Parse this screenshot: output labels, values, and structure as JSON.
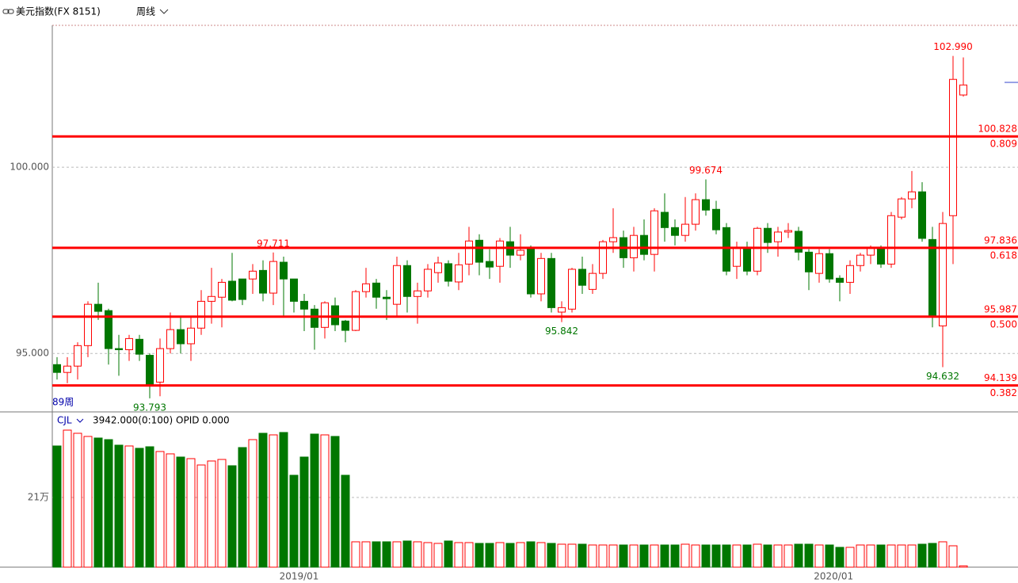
{
  "chart_data": [
    {
      "type": "candlestick",
      "title": "美元指数(FX 8151)",
      "period": "周线",
      "count_label": "89周",
      "up_color": "#ff0000",
      "down_color": "#007700",
      "level_color": "#ff0000",
      "open": [
        94.7,
        94.49,
        94.66,
        95.21,
        96.32,
        96.15,
        95.13,
        95.1,
        95.38,
        94.95,
        94.23,
        95.13,
        95.64,
        95.26,
        95.68,
        96.4,
        96.51,
        96.94,
        97.0,
        97.0,
        97.23,
        96.62,
        97.45,
        97.0,
        96.4,
        96.19,
        95.7,
        96.28,
        95.87,
        95.62,
        96.66,
        96.89,
        96.51,
        96.32,
        97.36,
        96.53,
        96.68,
        97.17,
        97.41,
        96.92,
        97.4,
        98.04,
        97.47,
        97.34,
        98.0,
        97.64,
        97.81,
        96.6,
        97.55,
        96.11,
        96.19,
        97.26,
        96.72,
        97.15,
        98.0,
        98.11,
        97.57,
        98.17,
        97.66,
        98.79,
        98.38,
        98.17,
        98.47,
        99.13,
        98.87,
        98.38,
        97.34,
        97.83,
        97.21,
        98.36,
        98.0,
        98.26,
        98.28,
        97.72,
        97.15,
        97.68,
        97.02,
        96.91,
        97.36,
        97.64,
        97.83,
        97.4,
        98.66,
        99.15,
        99.34,
        98.06,
        95.74,
        98.7,
        101.94
      ],
      "high": [
        94.9,
        94.9,
        95.3,
        96.4,
        96.9,
        96.2,
        95.5,
        95.5,
        95.5,
        95.0,
        95.4,
        96.1,
        96.0,
        96.0,
        96.7,
        97.3,
        97.0,
        97.7,
        97.0,
        97.4,
        97.5,
        97.711,
        97.6,
        97.0,
        96.6,
        96.3,
        96.4,
        96.5,
        95.9,
        96.7,
        97.3,
        97.0,
        96.7,
        97.6,
        97.5,
        96.9,
        97.4,
        97.6,
        97.5,
        97.7,
        98.4,
        98.2,
        97.8,
        98.1,
        98.4,
        98.2,
        97.9,
        97.7,
        97.7,
        96.4,
        97.3,
        97.6,
        97.4,
        98.05,
        98.9,
        98.3,
        98.4,
        98.6,
        98.9,
        99.3,
        98.6,
        99.2,
        99.3,
        99.674,
        99.1,
        98.5,
        98.0,
        98.0,
        98.4,
        98.5,
        98.4,
        98.5,
        98.4,
        97.8,
        97.8,
        97.8,
        97.1,
        97.5,
        97.7,
        97.9,
        97.9,
        98.8,
        99.2,
        99.9,
        99.6,
        98.4,
        98.8,
        102.99,
        102.95
      ],
      "low": [
        94.3,
        94.2,
        94.3,
        94.9,
        95.9,
        94.7,
        94.4,
        94.8,
        94.8,
        93.793,
        93.85,
        95.0,
        95.0,
        94.8,
        95.5,
        95.8,
        95.7,
        96.4,
        96.3,
        96.6,
        96.4,
        96.3,
        96.0,
        96.1,
        95.6,
        95.1,
        95.4,
        95.6,
        95.3,
        95.6,
        96.5,
        96.2,
        95.9,
        96.0,
        96.1,
        95.8,
        96.5,
        96.9,
        96.8,
        96.7,
        97.1,
        97.1,
        97.0,
        96.9,
        97.3,
        97.5,
        96.5,
        96.4,
        96.1,
        95.842,
        96.1,
        96.6,
        96.6,
        97.0,
        97.7,
        97.3,
        97.2,
        97.5,
        97.2,
        98.0,
        97.9,
        98.0,
        98.3,
        98.7,
        98.2,
        97.1,
        97.0,
        97.1,
        97.1,
        97.7,
        97.6,
        98.1,
        97.5,
        96.7,
        96.9,
        96.9,
        96.4,
        96.6,
        97.2,
        97.4,
        97.3,
        97.3,
        98.6,
        98.9,
        98.0,
        95.7,
        94.632,
        97.4,
        101.9
      ],
      "close": [
        94.49,
        94.66,
        95.21,
        96.32,
        96.13,
        95.13,
        95.1,
        95.4,
        94.98,
        94.15,
        95.13,
        95.64,
        95.26,
        95.68,
        96.4,
        96.53,
        96.91,
        96.43,
        96.45,
        97.21,
        96.62,
        97.47,
        97.0,
        96.4,
        96.19,
        95.7,
        96.36,
        95.77,
        95.62,
        96.66,
        96.87,
        96.51,
        96.47,
        97.36,
        96.53,
        96.68,
        97.26,
        97.43,
        96.94,
        97.38,
        98.02,
        97.45,
        97.32,
        98.02,
        97.64,
        97.77,
        96.6,
        97.55,
        96.23,
        96.23,
        97.26,
        96.83,
        97.15,
        98.0,
        98.11,
        97.57,
        98.17,
        97.66,
        98.83,
        98.38,
        98.17,
        98.47,
        99.13,
        98.85,
        98.32,
        97.21,
        97.83,
        97.21,
        98.36,
        97.98,
        98.26,
        98.3,
        97.72,
        97.19,
        97.68,
        97.0,
        96.91,
        97.36,
        97.64,
        97.83,
        97.4,
        98.7,
        99.15,
        99.34,
        98.09,
        96.0,
        98.49,
        102.36,
        102.21
      ],
      "ylim": [
        93.43,
        103.79
      ],
      "yticks": [
        {
          "value": 95,
          "label": "95.000"
        },
        {
          "value": 100,
          "label": "100.000"
        }
      ],
      "grid": true,
      "levels": [
        {
          "value": 100.828,
          "ratio": "0.809"
        },
        {
          "value": 97.836,
          "ratio": "0.618"
        },
        {
          "value": 95.987,
          "ratio": "0.500"
        },
        {
          "value": 94.139,
          "ratio": "0.382"
        }
      ],
      "annotations": [
        {
          "index": 87,
          "value": 102.99,
          "label": "102.990"
        },
        {
          "index": 63,
          "value": 99.674,
          "label": "99.674"
        },
        {
          "index": 21,
          "value": 97.711,
          "label": "97.711"
        },
        {
          "index": 49,
          "value": 95.842,
          "label": "95.842"
        },
        {
          "index": 86,
          "value": 94.632,
          "label": "94.632"
        },
        {
          "index": 9,
          "value": 93.793,
          "label": "93.793"
        }
      ],
      "x_labels": [
        {
          "at": 23.5,
          "label": "2019/01"
        },
        {
          "at": 75.4,
          "label": "2020/01"
        }
      ]
    },
    {
      "type": "volume",
      "name": "CJL",
      "subtitle": "3942.000(0:100)  OPID 0.000",
      "values": [
        365100,
        412800,
        403300,
        393800,
        389000,
        384200,
        367500,
        365100,
        358000,
        362700,
        348400,
        341300,
        331700,
        326900,
        307800,
        319800,
        324500,
        305500,
        360300,
        384200,
        403300,
        398500,
        405700,
        276800,
        331700,
        400900,
        398500,
        393800,
        276800,
        76400,
        76400,
        76400,
        76400,
        76400,
        78800,
        76400,
        74000,
        71600,
        78800,
        74000,
        74000,
        71600,
        71600,
        74000,
        71600,
        74000,
        76400,
        74000,
        71600,
        69200,
        69200,
        69200,
        66800,
        66800,
        66800,
        66800,
        66800,
        66800,
        66800,
        66800,
        66800,
        69200,
        66800,
        66800,
        66800,
        66800,
        66800,
        66800,
        69200,
        66800,
        66800,
        66800,
        69200,
        69200,
        66800,
        66800,
        59700,
        59700,
        66800,
        66800,
        66800,
        66800,
        66800,
        66800,
        69200,
        71600,
        76400,
        64400,
        3942
      ],
      "ylim": [
        0,
        467700
      ],
      "yticks": [
        {
          "value": 210000,
          "label": "21万"
        }
      ],
      "grid": true
    }
  ]
}
